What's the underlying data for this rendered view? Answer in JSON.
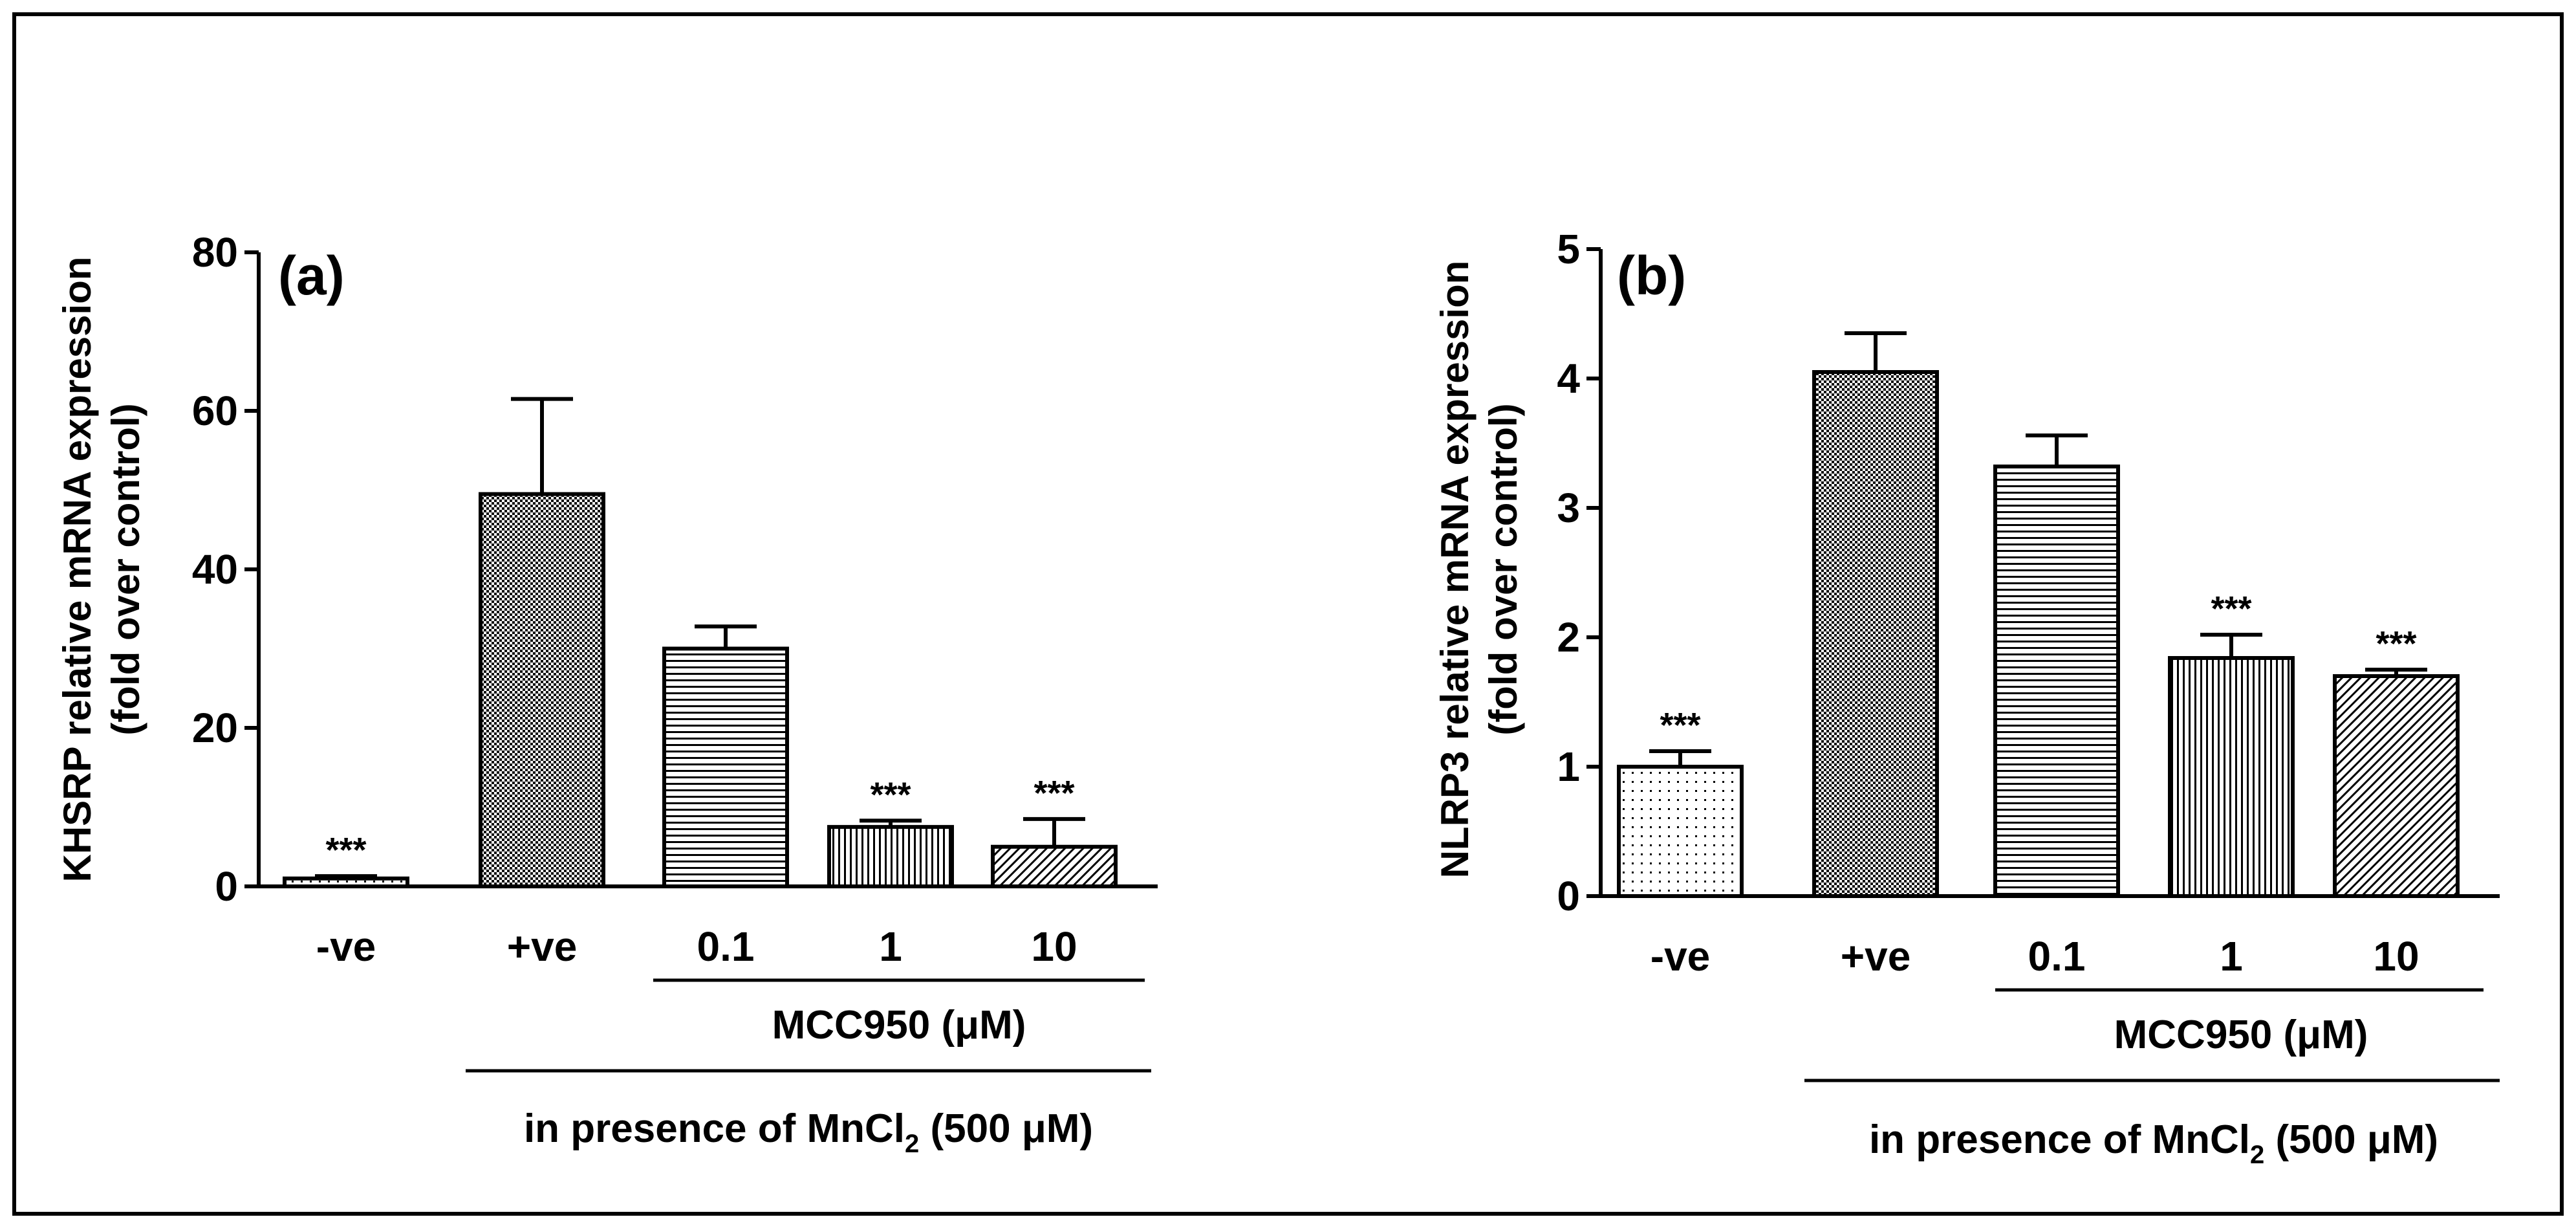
{
  "chart_data": [
    {
      "type": "bar",
      "panel_label": "(a)",
      "ylabel_line1": "KHSRP relative mRNA expression",
      "ylabel_line2": "(fold over control)",
      "categories": [
        "-ve",
        "+ve",
        "0.1",
        "1",
        "10"
      ],
      "values": [
        1,
        49.5,
        30,
        7.5,
        5
      ],
      "errors": [
        0.3,
        12,
        2.8,
        0.8,
        3.5
      ],
      "significance": [
        "***",
        "",
        "",
        "***",
        "***"
      ],
      "patterns": [
        "dots",
        "checker",
        "hlines",
        "vlines",
        "diag"
      ],
      "ylim": [
        0,
        80
      ],
      "yticks": [
        0,
        20,
        40,
        60,
        80
      ],
      "group_label_inner": "MCC950 (μM)",
      "group_label_outer_prefix": "in presence of MnCl",
      "group_label_outer_sub": "2",
      "group_label_outer_suffix": " (500 μM)"
    },
    {
      "type": "bar",
      "panel_label": "(b)",
      "ylabel_line1": "NLRP3 relative mRNA expression",
      "ylabel_line2": "(fold over control)",
      "categories": [
        "-ve",
        "+ve",
        "0.1",
        "1",
        "10"
      ],
      "values": [
        1.0,
        4.05,
        3.32,
        1.84,
        1.7
      ],
      "errors": [
        0.12,
        0.3,
        0.24,
        0.18,
        0.05
      ],
      "significance": [
        "***",
        "",
        "",
        "***",
        "***"
      ],
      "patterns": [
        "dots",
        "checker",
        "hlines",
        "vlines",
        "diag"
      ],
      "ylim": [
        0,
        5
      ],
      "yticks": [
        0,
        1,
        2,
        3,
        4,
        5
      ],
      "group_label_inner": "MCC950 (μM)",
      "group_label_outer_prefix": "in presence of MnCl",
      "group_label_outer_sub": "2",
      "group_label_outer_suffix": " (500 μM)"
    }
  ]
}
